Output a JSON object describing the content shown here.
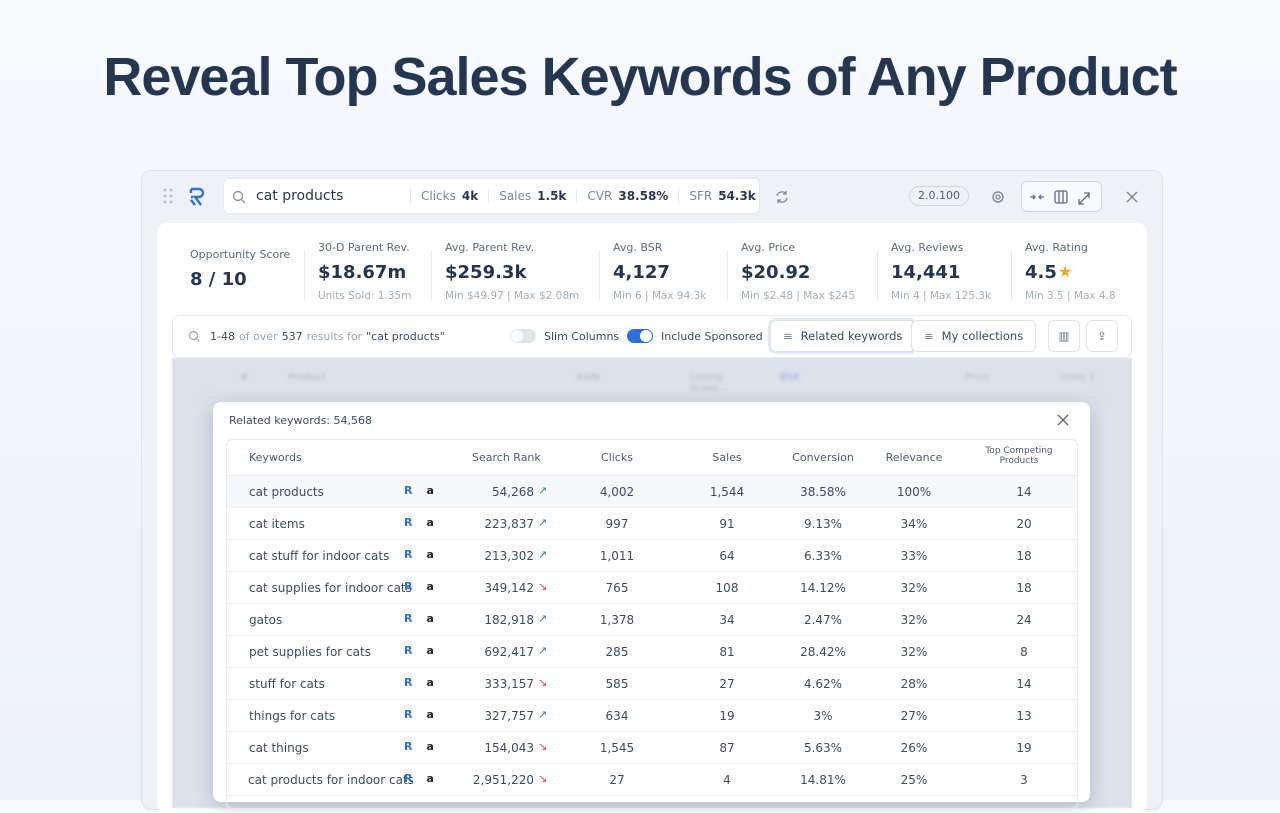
{
  "headline": "Reveal Top Sales Keywords of Any Product",
  "toolbar": {
    "query": "cat products",
    "stats": [
      {
        "label": "Clicks",
        "value": "4k"
      },
      {
        "label": "Sales",
        "value": "1.5k"
      },
      {
        "label": "CVR",
        "value": "38.58%"
      },
      {
        "label": "SFR",
        "value": "54.3k"
      }
    ],
    "version": "2.0.100"
  },
  "metrics": [
    {
      "label": "Opportunity Score",
      "value": "8 / 10"
    },
    {
      "label": "30-D Parent Rev.",
      "value": "$18.67m",
      "sub": "Units Sold: 1.35m"
    },
    {
      "label": "Avg. Parent Rev.",
      "value": "$259.3k",
      "sub": "Min $49.97 | Max $2.08m"
    },
    {
      "label": "Avg. BSR",
      "value": "4,127",
      "sub": "Min 6 | Max 94.3k"
    },
    {
      "label": "Avg. Price",
      "value": "$20.92",
      "sub": "Min $2.48 | Max $245"
    },
    {
      "label": "Avg. Reviews",
      "value": "14,441",
      "sub": "Min 4 | Max 125.3k"
    },
    {
      "label": "Avg. Rating",
      "value": "4.5",
      "sub": "Min 3.5 | Max 4.8"
    }
  ],
  "results": {
    "summary": [
      "1-48",
      "of over",
      "537",
      "results for",
      "\"cat products\""
    ],
    "toggles": [
      "Slim Columns",
      "Include Sponsored"
    ],
    "buttons": [
      "Related keywords",
      "My collections"
    ],
    "background_columns": [
      "#",
      "Product",
      "ASIN",
      "Listing Score",
      "BSR",
      "Price",
      "Units S"
    ]
  },
  "panel": {
    "title": "Related keywords: 54,568",
    "columns": [
      "Keywords",
      "Search Rank",
      "Clicks",
      "Sales",
      "Conversion",
      "Relevance",
      "Top Competing Products"
    ],
    "rows": [
      {
        "cells": [
          "cat products",
          "54,268",
          "4,002",
          "1,544",
          "38.58%",
          "100%",
          "14"
        ],
        "trend": "up"
      },
      {
        "cells": [
          "cat items",
          "223,837",
          "997",
          "91",
          "9.13%",
          "34%",
          "20"
        ],
        "trend": "up"
      },
      {
        "cells": [
          "cat stuff for indoor cats",
          "213,302",
          "1,011",
          "64",
          "6.33%",
          "33%",
          "18"
        ],
        "trend": "up"
      },
      {
        "cells": [
          "cat supplies for indoor cats",
          "349,142",
          "765",
          "108",
          "14.12%",
          "32%",
          "18"
        ],
        "trend": "down"
      },
      {
        "cells": [
          "gatos",
          "182,918",
          "1,378",
          "34",
          "2.47%",
          "32%",
          "24"
        ],
        "trend": "up"
      },
      {
        "cells": [
          "pet supplies for cats",
          "692,417",
          "285",
          "81",
          "28.42%",
          "32%",
          "8"
        ],
        "trend": "up"
      },
      {
        "cells": [
          "stuff for cats",
          "333,157",
          "585",
          "27",
          "4.62%",
          "28%",
          "14"
        ],
        "trend": "down"
      },
      {
        "cells": [
          "things for cats",
          "327,757",
          "634",
          "19",
          "3%",
          "27%",
          "13"
        ],
        "trend": "up"
      },
      {
        "cells": [
          "cat things",
          "154,043",
          "1,545",
          "87",
          "5.63%",
          "26%",
          "19"
        ],
        "trend": "down"
      },
      {
        "cells": [
          "cat products for indoor cats",
          "2,951,220",
          "27",
          "4",
          "14.81%",
          "25%",
          "3"
        ],
        "trend": "down"
      }
    ]
  }
}
